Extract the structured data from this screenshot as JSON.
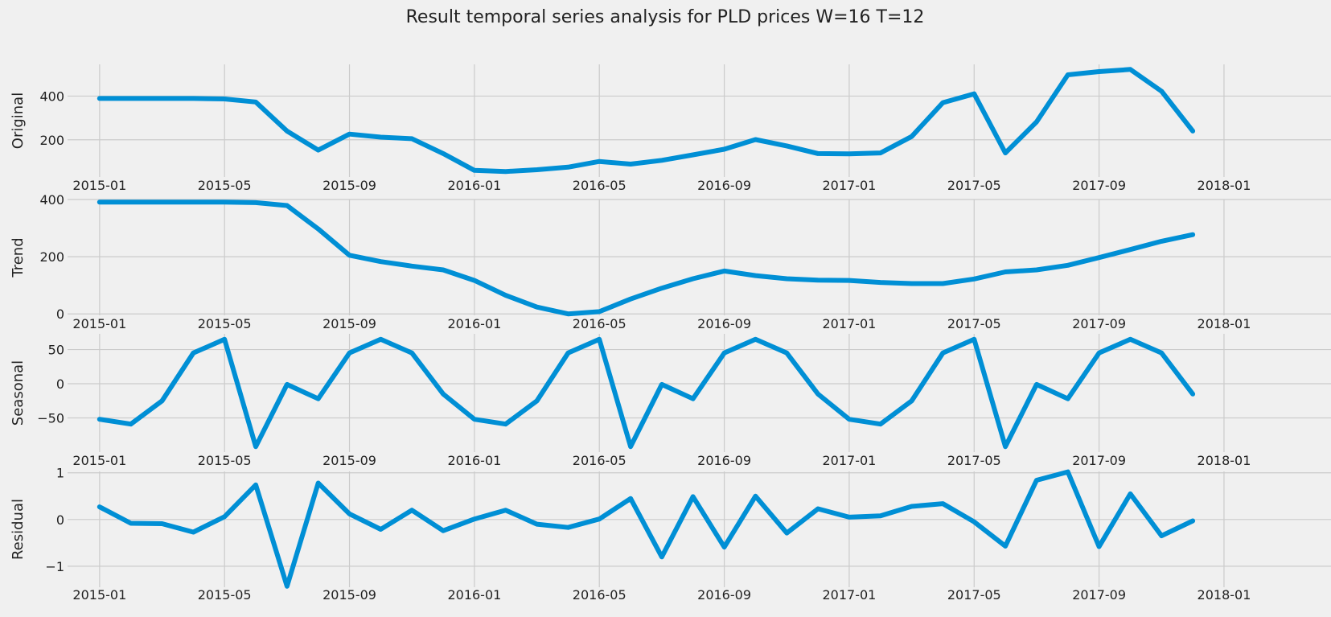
{
  "suptitle": "Result temporal series analysis for PLD prices W=16 T=12",
  "colors": {
    "background": "#f0f0f0",
    "grid": "#cbcbcb",
    "line": "#008fd5",
    "text": "#222222"
  },
  "chart_data": [
    {
      "type": "line",
      "ylabel": "Original",
      "x": [
        "2015-01",
        "2015-02",
        "2015-03",
        "2015-04",
        "2015-05",
        "2015-06",
        "2015-07",
        "2015-08",
        "2015-09",
        "2015-10",
        "2015-11",
        "2015-12",
        "2016-01",
        "2016-02",
        "2016-03",
        "2016-04",
        "2016-05",
        "2016-06",
        "2016-07",
        "2016-08",
        "2016-09",
        "2016-10",
        "2016-11",
        "2016-12",
        "2017-01",
        "2017-02",
        "2017-03",
        "2017-04",
        "2017-05",
        "2017-06",
        "2017-07",
        "2017-08",
        "2017-09",
        "2017-10",
        "2017-11",
        "2017-12"
      ],
      "values": [
        389,
        389,
        389,
        389,
        387,
        373,
        240,
        153,
        226,
        212,
        205,
        137,
        60,
        55,
        63,
        75,
        101,
        89,
        106,
        131,
        157,
        201,
        172,
        137,
        136,
        140,
        215,
        370,
        410,
        140,
        282,
        497,
        512,
        522,
        422,
        240
      ],
      "xticks": [
        "2015-01",
        "2015-05",
        "2015-09",
        "2016-01",
        "2016-05",
        "2016-09",
        "2017-01",
        "2017-05",
        "2017-09",
        "2018-01"
      ],
      "yticks": [
        200,
        400
      ],
      "ylim": [
        30,
        545
      ],
      "xlim": [
        "2014-11-15",
        "2018-02-15"
      ],
      "grid": true
    },
    {
      "type": "line",
      "ylabel": "Trend",
      "x": [
        "2015-01",
        "2015-02",
        "2015-03",
        "2015-04",
        "2015-05",
        "2015-06",
        "2015-07",
        "2015-08",
        "2015-09",
        "2015-10",
        "2015-11",
        "2015-12",
        "2016-01",
        "2016-02",
        "2016-03",
        "2016-04",
        "2016-05",
        "2016-06",
        "2016-07",
        "2016-08",
        "2016-09",
        "2016-10",
        "2016-11",
        "2016-12",
        "2017-01",
        "2017-02",
        "2017-03",
        "2017-04",
        "2017-05",
        "2017-06",
        "2017-07",
        "2017-08",
        "2017-09",
        "2017-10",
        "2017-11",
        "2017-12"
      ],
      "values": [
        391,
        391,
        391,
        391,
        391,
        389,
        379,
        297,
        205,
        183,
        167,
        154,
        117,
        65,
        24,
        0,
        8,
        52,
        90,
        123,
        150,
        134,
        123,
        118,
        117,
        110,
        106,
        106,
        122,
        147,
        154,
        170,
        197,
        225,
        254,
        277
      ],
      "xticks": [
        "2015-01",
        "2015-05",
        "2015-09",
        "2016-01",
        "2016-05",
        "2016-09",
        "2017-01",
        "2017-05",
        "2017-09",
        "2018-01"
      ],
      "yticks": [
        0,
        200,
        400
      ],
      "ylim": [
        -5,
        400
      ],
      "xlim": [
        "2014-11-15",
        "2018-02-15"
      ],
      "grid": true
    },
    {
      "type": "line",
      "ylabel": "Seasonal",
      "x": [
        "2015-01",
        "2015-02",
        "2015-03",
        "2015-04",
        "2015-05",
        "2015-06",
        "2015-07",
        "2015-08",
        "2015-09",
        "2015-10",
        "2015-11",
        "2015-12",
        "2016-01",
        "2016-02",
        "2016-03",
        "2016-04",
        "2016-05",
        "2016-06",
        "2016-07",
        "2016-08",
        "2016-09",
        "2016-10",
        "2016-11",
        "2016-12",
        "2017-01",
        "2017-02",
        "2017-03",
        "2017-04",
        "2017-05",
        "2017-06",
        "2017-07",
        "2017-08",
        "2017-09",
        "2017-10",
        "2017-11",
        "2017-12"
      ],
      "values": [
        -52,
        -59,
        -25,
        45,
        65,
        -92,
        -1,
        -22,
        45,
        65,
        45,
        -15,
        -52,
        -59,
        -25,
        45,
        65,
        -92,
        -1,
        -22,
        45,
        65,
        45,
        -15,
        -52,
        -59,
        -25,
        45,
        65,
        -92,
        -1,
        -22,
        45,
        65,
        45,
        -15
      ],
      "xticks": [
        "2015-01",
        "2015-05",
        "2015-09",
        "2016-01",
        "2016-05",
        "2016-09",
        "2017-01",
        "2017-05",
        "2017-09",
        "2018-01"
      ],
      "yticks": [
        -50,
        0,
        50
      ],
      "ylim": [
        -100,
        73
      ],
      "xlim": [
        "2014-11-15",
        "2018-02-15"
      ],
      "grid": true
    },
    {
      "type": "line",
      "ylabel": "Residual",
      "x": [
        "2015-01",
        "2015-02",
        "2015-03",
        "2015-04",
        "2015-05",
        "2015-06",
        "2015-07",
        "2015-08",
        "2015-09",
        "2015-10",
        "2015-11",
        "2015-12",
        "2016-01",
        "2016-02",
        "2016-03",
        "2016-04",
        "2016-05",
        "2016-06",
        "2016-07",
        "2016-08",
        "2016-09",
        "2016-10",
        "2016-11",
        "2016-12",
        "2017-01",
        "2017-02",
        "2017-03",
        "2017-04",
        "2017-05",
        "2017-06",
        "2017-07",
        "2017-08",
        "2017-09",
        "2017-10",
        "2017-11",
        "2017-12"
      ],
      "values": [
        0.27,
        -0.08,
        -0.09,
        -0.27,
        0.06,
        0.74,
        -1.43,
        0.78,
        0.12,
        -0.21,
        0.2,
        -0.24,
        0.01,
        0.2,
        -0.1,
        -0.17,
        0.01,
        0.45,
        -0.8,
        0.49,
        -0.59,
        0.5,
        -0.29,
        0.23,
        0.05,
        0.08,
        0.28,
        0.34,
        -0.05,
        -0.57,
        0.84,
        1.02,
        -0.58,
        0.55,
        -0.35,
        -0.03
      ],
      "xticks": [
        "2015-01",
        "2015-05",
        "2015-09",
        "2016-01",
        "2016-05",
        "2016-09",
        "2017-01",
        "2017-05",
        "2017-09",
        "2018-01"
      ],
      "yticks": [
        -1,
        0,
        1
      ],
      "ylim": [
        -1.45,
        1.03
      ],
      "xlim": [
        "2014-11-15",
        "2018-02-15"
      ],
      "grid": true
    }
  ]
}
